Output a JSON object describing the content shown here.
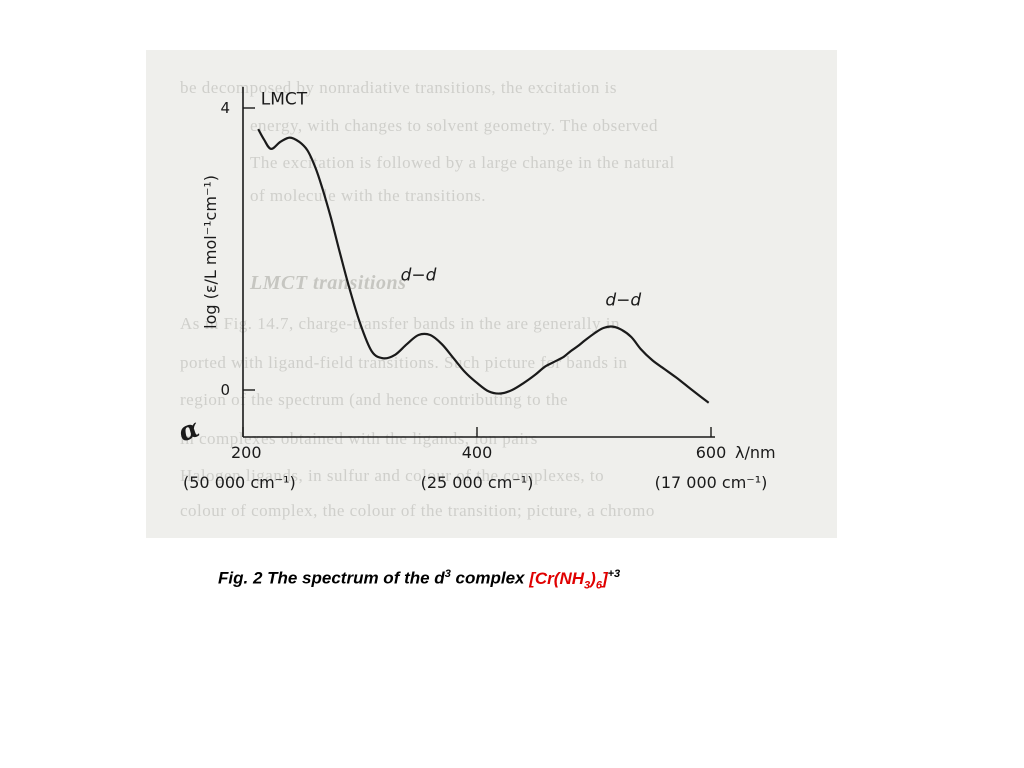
{
  "caption": {
    "prefix": "Fig. 2 The spectrum of the d",
    "d_superscript": "3",
    "middle": " complex ",
    "formula_open": "[Cr(NH",
    "formula_sub": "3",
    "formula_close_inner": ")",
    "formula_sub2": "6",
    "formula_close": "]",
    "charge": "+3",
    "formula_color": "#e00000"
  },
  "background_text": {
    "lines": [
      "be decomposed by nonradiative transitions, the excitation is",
      "energy, with changes to solvent geometry. The observed",
      "The excitation is followed by a large change in the natural",
      "of molecule with the transitions."
    ],
    "heading": "LMCT transitions",
    "lines2": [
      "As in Fig. 14.7, charge-transfer bands in the are generally in",
      "ported with ligand-field transitions. Such picture for bands in",
      "region of the spectrum (and hence contributing to the ",
      "in complexes obtained with the ligands, ion pairs",
      "Halogen ligands, in sulfur and colour of the complexes, to",
      "colour of complex, the colour of the transition; picture, a chromo"
    ]
  },
  "chart_data": {
    "type": "line",
    "title": "",
    "ylabel": "log (ε/L mol⁻¹cm⁻¹)",
    "xlabel": "λ/nm",
    "x_unit_label": "λ/nm",
    "xlim": [
      200,
      600
    ],
    "ylim": [
      -0.5,
      4.3
    ],
    "x_ticks": [
      {
        "value": 200,
        "label": "200",
        "sublabel": "(50 000 cm⁻¹)"
      },
      {
        "value": 400,
        "label": "400",
        "sublabel": "(25 000 cm⁻¹)"
      },
      {
        "value": 600,
        "label": "600",
        "sublabel": "(17 000 cm⁻¹)"
      }
    ],
    "y_ticks": [
      {
        "value": 0,
        "label": "0"
      },
      {
        "value": 4,
        "label": "4"
      }
    ],
    "annotations": [
      {
        "text": "LMCT",
        "x": 235,
        "y": 4.05
      },
      {
        "text": "d−d",
        "x": 350,
        "y": 1.55
      },
      {
        "text": "d−d",
        "x": 525,
        "y": 1.2
      }
    ],
    "handwritten_mark": "α",
    "series": [
      {
        "x": [
          213,
          218,
          224,
          232,
          240,
          248,
          255,
          262,
          268,
          275,
          282,
          290,
          300,
          310,
          320,
          330,
          340,
          350,
          360,
          370,
          380,
          390,
          400,
          410,
          420,
          430,
          440,
          450,
          458,
          466,
          474,
          480,
          486,
          492,
          500,
          508,
          516,
          524,
          532,
          540,
          550,
          560,
          570,
          580,
          590,
          598
        ],
        "y": [
          3.7,
          3.55,
          3.42,
          3.52,
          3.58,
          3.52,
          3.4,
          3.15,
          2.85,
          2.45,
          2.0,
          1.5,
          0.95,
          0.55,
          0.45,
          0.5,
          0.65,
          0.78,
          0.78,
          0.65,
          0.45,
          0.25,
          0.1,
          -0.02,
          -0.05,
          0.0,
          0.1,
          0.22,
          0.33,
          0.4,
          0.47,
          0.55,
          0.62,
          0.7,
          0.8,
          0.88,
          0.9,
          0.85,
          0.75,
          0.58,
          0.42,
          0.3,
          0.18,
          0.05,
          -0.08,
          -0.18
        ]
      }
    ],
    "grid": false,
    "legend": "none",
    "color": "#1a1a1a"
  }
}
